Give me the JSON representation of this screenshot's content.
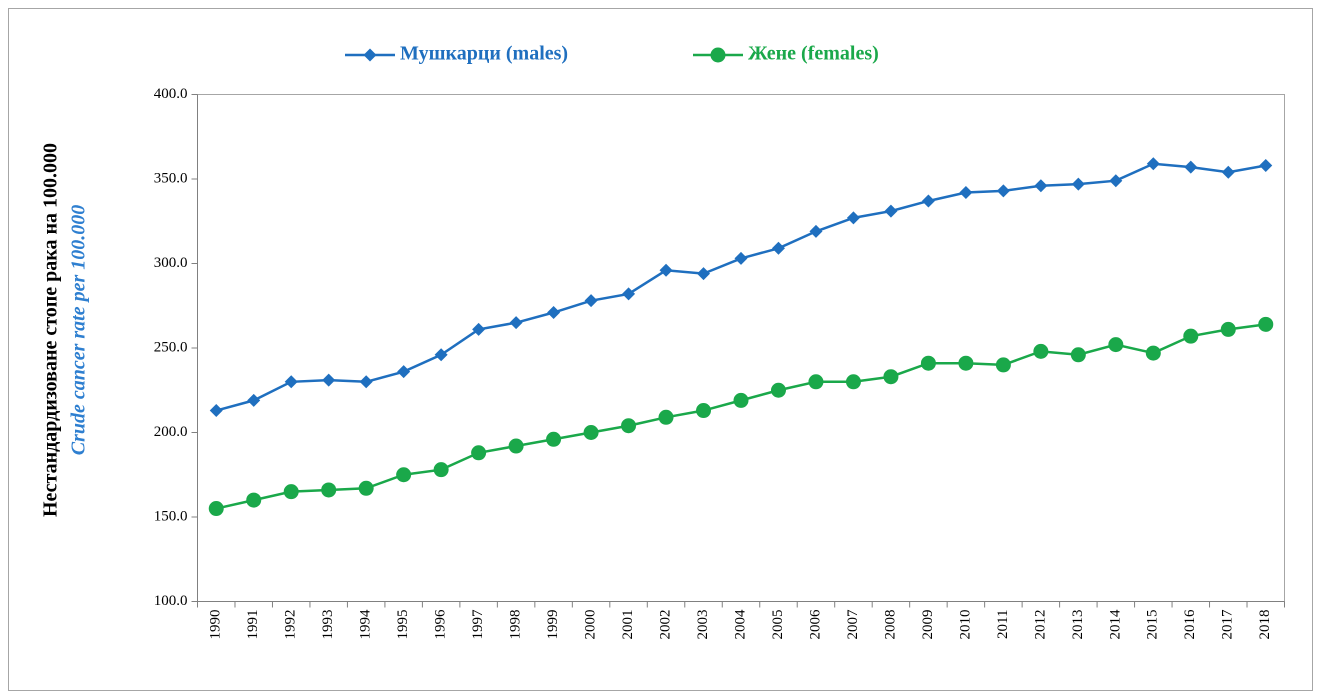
{
  "chart_data": {
    "type": "line",
    "ylabel": "Нестандардизоване стопе рака на 100.000",
    "ylabel_en": "Crude cancer rate per 100.000",
    "categories": [
      "1990",
      "1991",
      "1992",
      "1993",
      "1994",
      "1995",
      "1996",
      "1997",
      "1998",
      "1999",
      "2000",
      "2001",
      "2002",
      "2003",
      "2004",
      "2005",
      "2006",
      "2007",
      "2008",
      "2009",
      "2010",
      "2011",
      "2012",
      "2013",
      "2014",
      "2015",
      "2016",
      "2017",
      "2018"
    ],
    "series": [
      {
        "name": "Мушкарци (males)",
        "color": "#1f6fbf",
        "marker": "diamond",
        "values": [
          213,
          219,
          230,
          231,
          230,
          236,
          246,
          261,
          265,
          271,
          278,
          282,
          296,
          294,
          303,
          309,
          319,
          327,
          331,
          337,
          342,
          343,
          346,
          347,
          349,
          359,
          357,
          354,
          358
        ]
      },
      {
        "name": "Жене (females)",
        "color": "#1aa84a",
        "marker": "circle",
        "values": [
          155,
          160,
          165,
          166,
          167,
          175,
          178,
          188,
          192,
          196,
          200,
          204,
          209,
          213,
          219,
          225,
          230,
          230,
          233,
          241,
          241,
          240,
          248,
          246,
          252,
          247,
          257,
          261,
          264
        ]
      }
    ],
    "ylim": [
      100,
      400
    ],
    "yticks": [
      {
        "value": 100,
        "label": "100.0"
      },
      {
        "value": 150,
        "label": "150.0"
      },
      {
        "value": 200,
        "label": "200.0"
      },
      {
        "value": 250,
        "label": "250.0"
      },
      {
        "value": 300,
        "label": "300.0"
      },
      {
        "value": 350,
        "label": "350.0"
      },
      {
        "value": 400,
        "label": "400.0"
      }
    ],
    "legend": "top",
    "grid": false
  }
}
